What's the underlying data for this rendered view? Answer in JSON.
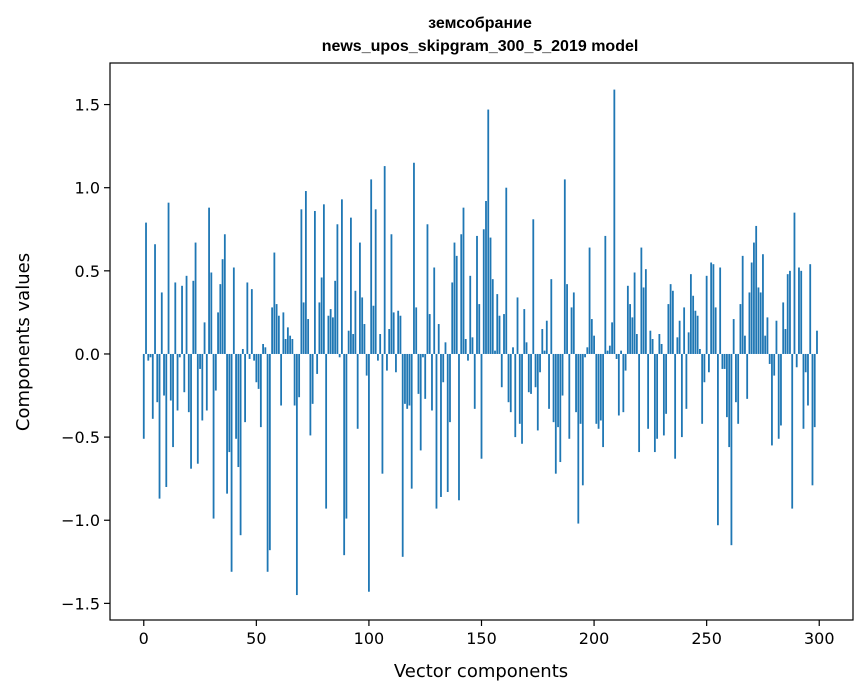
{
  "chart_data": {
    "type": "bar",
    "title_line1": "земсобрание",
    "title_line2": "news_upos_skipgram_300_5_2019 model",
    "xlabel": "Vector components",
    "ylabel": "Components values",
    "xlim": [
      -15,
      315
    ],
    "ylim": [
      -1.6,
      1.75
    ],
    "xticks": [
      0,
      50,
      100,
      150,
      200,
      250,
      300
    ],
    "yticks": [
      -1.5,
      -1.0,
      -0.5,
      0.0,
      0.5,
      1.0,
      1.5
    ],
    "ytick_labels": [
      "−1.5",
      "−1.0",
      "−0.5",
      "0.0",
      "0.5",
      "1.0",
      "1.5"
    ],
    "bar_color": "#1f77b4",
    "grid": false,
    "values": [
      -0.51,
      0.79,
      -0.04,
      -0.02,
      -0.39,
      0.66,
      -0.29,
      -0.87,
      0.37,
      -0.25,
      -0.8,
      0.91,
      -0.28,
      -0.56,
      0.43,
      -0.34,
      -0.02,
      0.41,
      -0.23,
      0.47,
      -0.35,
      -0.69,
      0.44,
      0.67,
      -0.66,
      -0.09,
      -0.4,
      0.19,
      -0.34,
      0.88,
      0.49,
      -0.99,
      -0.22,
      0.25,
      0.42,
      0.57,
      0.72,
      -0.84,
      -0.59,
      -1.31,
      0.52,
      -0.51,
      -0.68,
      -1.09,
      0.03,
      -0.41,
      0.43,
      -0.03,
      0.39,
      -0.04,
      -0.17,
      -0.21,
      -0.44,
      0.06,
      0.04,
      -1.31,
      -1.18,
      0.28,
      0.61,
      0.3,
      0.23,
      -0.31,
      0.25,
      0.09,
      0.16,
      0.11,
      0.09,
      -0.31,
      -1.45,
      -0.26,
      0.87,
      0.31,
      0.98,
      0.21,
      -0.49,
      -0.3,
      0.86,
      -0.12,
      0.31,
      0.46,
      0.9,
      -0.93,
      0.23,
      0.27,
      0.22,
      0.44,
      0.78,
      -0.02,
      0.93,
      -1.21,
      -0.99,
      0.14,
      0.82,
      0.12,
      0.38,
      -0.45,
      0.67,
      0.34,
      0.18,
      -0.13,
      -1.43,
      1.05,
      0.29,
      0.87,
      -0.04,
      0.12,
      -0.72,
      1.13,
      -0.1,
      0.15,
      0.72,
      0.25,
      -0.11,
      0.26,
      0.23,
      -1.22,
      -0.3,
      -0.33,
      -0.31,
      -0.81,
      1.15,
      0.28,
      -0.24,
      -0.58,
      -0.02,
      -0.27,
      0.78,
      0.24,
      -0.34,
      0.52,
      -0.93,
      0.18,
      -0.86,
      -0.17,
      0.07,
      -0.83,
      -0.41,
      0.43,
      0.67,
      0.59,
      -0.88,
      0.72,
      0.88,
      0.09,
      -0.04,
      0.47,
      0.1,
      -0.33,
      0.71,
      0.3,
      -0.63,
      0.75,
      0.92,
      1.47,
      0.7,
      0.45,
      0.02,
      0.36,
      0.23,
      -0.2,
      0.24,
      1.0,
      -0.29,
      -0.35,
      0.04,
      -0.5,
      0.34,
      -0.42,
      -0.54,
      0.27,
      0.07,
      -0.23,
      -0.24,
      0.81,
      -0.2,
      -0.46,
      -0.11,
      0.15,
      0.02,
      0.2,
      -0.33,
      0.45,
      -0.41,
      -0.72,
      -0.44,
      -0.65,
      -0.25,
      1.05,
      0.42,
      -0.51,
      0.28,
      0.37,
      -0.35,
      -1.02,
      -0.42,
      -0.79,
      -0.02,
      0.04,
      0.64,
      0.21,
      0.11,
      -0.42,
      -0.45,
      -0.4,
      -0.56,
      0.71,
      0.02,
      0.05,
      0.19,
      1.59,
      -0.03,
      -0.37,
      0.02,
      -0.35,
      -0.1,
      0.41,
      0.3,
      0.22,
      0.49,
      0.12,
      -0.59,
      0.64,
      0.4,
      0.51,
      -0.45,
      0.14,
      0.09,
      -0.59,
      -0.51,
      0.12,
      0.06,
      -0.49,
      -0.36,
      0.3,
      0.42,
      0.38,
      -0.63,
      0.1,
      0.2,
      -0.5,
      0.28,
      -0.33,
      0.13,
      0.48,
      0.35,
      0.26,
      0.23,
      0.03,
      -0.42,
      -0.17,
      0.47,
      -0.11,
      0.55,
      0.54,
      0.28,
      -1.03,
      0.52,
      -0.09,
      -0.09,
      -0.38,
      -0.56,
      -1.15,
      0.21,
      -0.29,
      -0.42,
      0.3,
      0.59,
      0.11,
      -0.27,
      0.37,
      0.55,
      0.67,
      0.77,
      0.4,
      0.37,
      0.6,
      0.11,
      0.22,
      -0.06,
      -0.55,
      -0.13,
      0.2,
      -0.51,
      -0.43,
      0.31,
      0.15,
      0.48,
      0.5,
      -0.93,
      0.85,
      -0.08,
      0.52,
      0.5,
      -0.45,
      -0.11,
      -0.31,
      0.54,
      -0.79,
      -0.44,
      0.14
    ]
  }
}
